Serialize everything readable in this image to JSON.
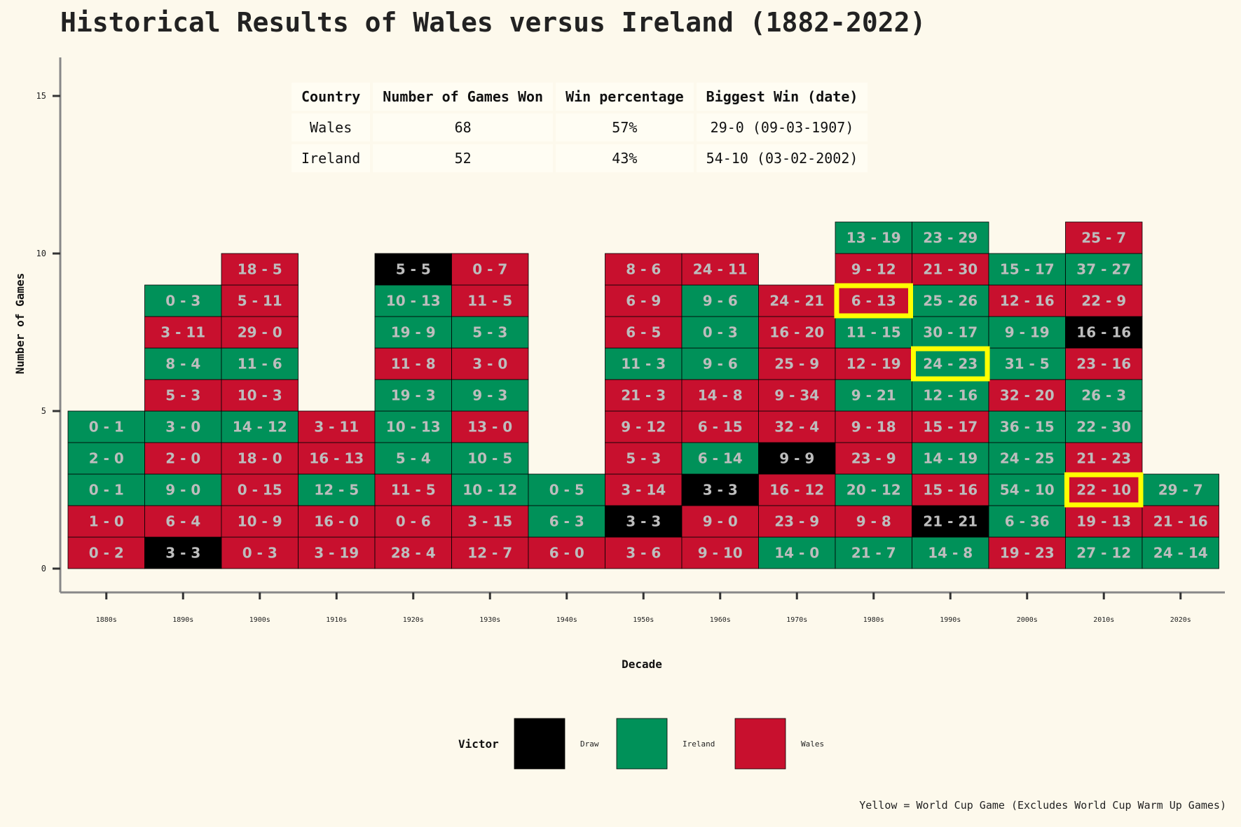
{
  "title": "Historical Results of Wales versus Ireland (1882-2022)",
  "colors": {
    "Draw": "#000000",
    "Ireland": "#009159",
    "Wales": "#c8102e",
    "highlight": "#ffff00",
    "background": "#fdf9ec"
  },
  "table": {
    "headers": [
      "Country",
      "Number of Games Won",
      "Win percentage",
      "Biggest Win (date)"
    ],
    "rows": [
      [
        "Wales",
        "68",
        "57%",
        "29-0 (09-03-1907)"
      ],
      [
        "Ireland",
        "52",
        "43%",
        "54-10 (03-02-2002)"
      ]
    ]
  },
  "legend": {
    "title": "Victor",
    "items": [
      "Draw",
      "Ireland",
      "Wales"
    ]
  },
  "footnote": "Yellow = World Cup Game (Excludes World Cup Warm Up Games)",
  "chart_data": {
    "type": "bar",
    "title": "Historical Results of Wales versus Ireland (1882-2022)",
    "xlabel": "Decade",
    "ylabel": "Number of Games",
    "ylim": [
      0,
      16
    ],
    "yticks": [
      0,
      5,
      10,
      15
    ],
    "categories": [
      "1880s",
      "1890s",
      "1900s",
      "1910s",
      "1920s",
      "1930s",
      "1940s",
      "1950s",
      "1960s",
      "1970s",
      "1980s",
      "1990s",
      "2000s",
      "2010s",
      "2020s"
    ],
    "values": [
      5,
      9,
      10,
      5,
      10,
      10,
      3,
      10,
      10,
      9,
      11,
      11,
      10,
      11,
      3
    ],
    "stacks": [
      [
        {
          "score": "0 - 2",
          "victor": "Wales"
        },
        {
          "score": "1 - 0",
          "victor": "Wales"
        },
        {
          "score": "0 - 1",
          "victor": "Ireland"
        },
        {
          "score": "2 - 0",
          "victor": "Ireland"
        },
        {
          "score": "0 - 1",
          "victor": "Ireland"
        }
      ],
      [
        {
          "score": "3 - 3",
          "victor": "Draw"
        },
        {
          "score": "6 - 4",
          "victor": "Wales"
        },
        {
          "score": "9 - 0",
          "victor": "Ireland"
        },
        {
          "score": "2 - 0",
          "victor": "Wales"
        },
        {
          "score": "3 - 0",
          "victor": "Ireland"
        },
        {
          "score": "5 - 3",
          "victor": "Wales"
        },
        {
          "score": "8 - 4",
          "victor": "Ireland"
        },
        {
          "score": "3 - 11",
          "victor": "Wales"
        },
        {
          "score": "0 - 3",
          "victor": "Ireland"
        }
      ],
      [
        {
          "score": "0 - 3",
          "victor": "Wales"
        },
        {
          "score": "10 - 9",
          "victor": "Wales"
        },
        {
          "score": "0 - 15",
          "victor": "Wales"
        },
        {
          "score": "18 - 0",
          "victor": "Wales"
        },
        {
          "score": "14 - 12",
          "victor": "Ireland"
        },
        {
          "score": "10 - 3",
          "victor": "Wales"
        },
        {
          "score": "11 - 6",
          "victor": "Ireland"
        },
        {
          "score": "29 - 0",
          "victor": "Wales"
        },
        {
          "score": "5 - 11",
          "victor": "Wales"
        },
        {
          "score": "18 - 5",
          "victor": "Wales"
        }
      ],
      [
        {
          "score": "3 - 19",
          "victor": "Wales"
        },
        {
          "score": "16 - 0",
          "victor": "Wales"
        },
        {
          "score": "12 - 5",
          "victor": "Ireland"
        },
        {
          "score": "16 - 13",
          "victor": "Wales"
        },
        {
          "score": "3 - 11",
          "victor": "Wales"
        }
      ],
      [
        {
          "score": "28 - 4",
          "victor": "Wales"
        },
        {
          "score": "0 - 6",
          "victor": "Wales"
        },
        {
          "score": "11 - 5",
          "victor": "Wales"
        },
        {
          "score": "5 - 4",
          "victor": "Ireland"
        },
        {
          "score": "10 - 13",
          "victor": "Ireland"
        },
        {
          "score": "19 - 3",
          "victor": "Ireland"
        },
        {
          "score": "11 - 8",
          "victor": "Wales"
        },
        {
          "score": "19 - 9",
          "victor": "Ireland"
        },
        {
          "score": "10 - 13",
          "victor": "Ireland"
        },
        {
          "score": "5 - 5",
          "victor": "Draw"
        }
      ],
      [
        {
          "score": "12 - 7",
          "victor": "Wales"
        },
        {
          "score": "3 - 15",
          "victor": "Wales"
        },
        {
          "score": "10 - 12",
          "victor": "Ireland"
        },
        {
          "score": "10 - 5",
          "victor": "Ireland"
        },
        {
          "score": "13 - 0",
          "victor": "Wales"
        },
        {
          "score": "9 - 3",
          "victor": "Ireland"
        },
        {
          "score": "3 - 0",
          "victor": "Wales"
        },
        {
          "score": "5 - 3",
          "victor": "Ireland"
        },
        {
          "score": "11 - 5",
          "victor": "Wales"
        },
        {
          "score": "0 - 7",
          "victor": "Wales"
        }
      ],
      [
        {
          "score": "6 - 0",
          "victor": "Wales"
        },
        {
          "score": "6 - 3",
          "victor": "Ireland"
        },
        {
          "score": "0 - 5",
          "victor": "Ireland"
        }
      ],
      [
        {
          "score": "3 - 6",
          "victor": "Wales"
        },
        {
          "score": "3 - 3",
          "victor": "Draw"
        },
        {
          "score": "3 - 14",
          "victor": "Wales"
        },
        {
          "score": "5 - 3",
          "victor": "Wales"
        },
        {
          "score": "9 - 12",
          "victor": "Wales"
        },
        {
          "score": "21 - 3",
          "victor": "Wales"
        },
        {
          "score": "11 - 3",
          "victor": "Ireland"
        },
        {
          "score": "6 - 5",
          "victor": "Wales"
        },
        {
          "score": "6 - 9",
          "victor": "Wales"
        },
        {
          "score": "8 - 6",
          "victor": "Wales"
        }
      ],
      [
        {
          "score": "9 - 10",
          "victor": "Wales"
        },
        {
          "score": "9 - 0",
          "victor": "Wales"
        },
        {
          "score": "3 - 3",
          "victor": "Draw"
        },
        {
          "score": "6 - 14",
          "victor": "Ireland"
        },
        {
          "score": "6 - 15",
          "victor": "Wales"
        },
        {
          "score": "14 - 8",
          "victor": "Wales"
        },
        {
          "score": "9 - 6",
          "victor": "Ireland"
        },
        {
          "score": "0 - 3",
          "victor": "Ireland"
        },
        {
          "score": "9 - 6",
          "victor": "Ireland"
        },
        {
          "score": "24 - 11",
          "victor": "Wales"
        }
      ],
      [
        {
          "score": "14 - 0",
          "victor": "Ireland"
        },
        {
          "score": "23 - 9",
          "victor": "Wales"
        },
        {
          "score": "16 - 12",
          "victor": "Wales"
        },
        {
          "score": "9 - 9",
          "victor": "Draw"
        },
        {
          "score": "32 - 4",
          "victor": "Wales"
        },
        {
          "score": "9 - 34",
          "victor": "Wales"
        },
        {
          "score": "25 - 9",
          "victor": "Wales"
        },
        {
          "score": "16 - 20",
          "victor": "Wales"
        },
        {
          "score": "24 - 21",
          "victor": "Wales"
        }
      ],
      [
        {
          "score": "21 - 7",
          "victor": "Ireland"
        },
        {
          "score": "9 - 8",
          "victor": "Wales"
        },
        {
          "score": "20 - 12",
          "victor": "Ireland"
        },
        {
          "score": "23 - 9",
          "victor": "Wales"
        },
        {
          "score": "9 - 18",
          "victor": "Wales"
        },
        {
          "score": "9 - 21",
          "victor": "Ireland"
        },
        {
          "score": "12 - 19",
          "victor": "Wales"
        },
        {
          "score": "11 - 15",
          "victor": "Ireland"
        },
        {
          "score": "6 - 13",
          "victor": "Wales",
          "world_cup": true
        },
        {
          "score": "9 - 12",
          "victor": "Wales"
        },
        {
          "score": "13 - 19",
          "victor": "Ireland"
        }
      ],
      [
        {
          "score": "14 - 8",
          "victor": "Ireland"
        },
        {
          "score": "21 - 21",
          "victor": "Draw"
        },
        {
          "score": "15 - 16",
          "victor": "Wales"
        },
        {
          "score": "14 - 19",
          "victor": "Ireland"
        },
        {
          "score": "15 - 17",
          "victor": "Wales"
        },
        {
          "score": "12 - 16",
          "victor": "Ireland"
        },
        {
          "score": "24 - 23",
          "victor": "Ireland",
          "world_cup": true
        },
        {
          "score": "30 - 17",
          "victor": "Ireland"
        },
        {
          "score": "25 - 26",
          "victor": "Ireland"
        },
        {
          "score": "21 - 30",
          "victor": "Wales"
        },
        {
          "score": "23 - 29",
          "victor": "Ireland"
        }
      ],
      [
        {
          "score": "19 - 23",
          "victor": "Wales"
        },
        {
          "score": "6 - 36",
          "victor": "Ireland"
        },
        {
          "score": "54 - 10",
          "victor": "Ireland"
        },
        {
          "score": "24 - 25",
          "victor": "Ireland"
        },
        {
          "score": "36 - 15",
          "victor": "Ireland"
        },
        {
          "score": "32 - 20",
          "victor": "Wales"
        },
        {
          "score": "31 - 5",
          "victor": "Ireland"
        },
        {
          "score": "9 - 19",
          "victor": "Ireland"
        },
        {
          "score": "12 - 16",
          "victor": "Wales"
        },
        {
          "score": "15 - 17",
          "victor": "Ireland"
        }
      ],
      [
        {
          "score": "27 - 12",
          "victor": "Ireland"
        },
        {
          "score": "19 - 13",
          "victor": "Wales"
        },
        {
          "score": "22 - 10",
          "victor": "Wales",
          "world_cup": true
        },
        {
          "score": "21 - 23",
          "victor": "Wales"
        },
        {
          "score": "22 - 30",
          "victor": "Ireland"
        },
        {
          "score": "26 - 3",
          "victor": "Ireland"
        },
        {
          "score": "23 - 16",
          "victor": "Wales"
        },
        {
          "score": "16 - 16",
          "victor": "Draw"
        },
        {
          "score": "22 - 9",
          "victor": "Wales"
        },
        {
          "score": "37 - 27",
          "victor": "Ireland"
        },
        {
          "score": "25 - 7",
          "victor": "Wales"
        }
      ],
      [
        {
          "score": "24 - 14",
          "victor": "Ireland"
        },
        {
          "score": "21 - 16",
          "victor": "Wales"
        },
        {
          "score": "29 - 7",
          "victor": "Ireland"
        }
      ]
    ],
    "legend_position": "bottom",
    "grid": false
  }
}
